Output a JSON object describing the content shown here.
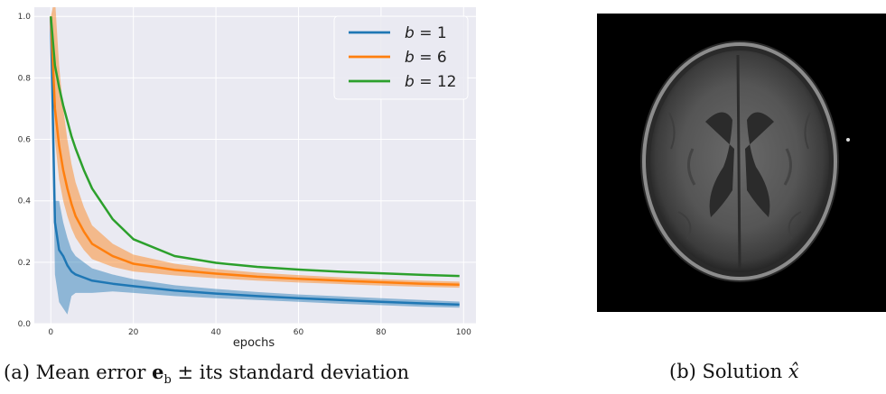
{
  "chart_data": {
    "type": "line",
    "xlabel": "epochs",
    "xlim": [
      -4,
      103
    ],
    "ylim": [
      0,
      1.03
    ],
    "xticks": [
      0,
      20,
      40,
      60,
      80,
      100
    ],
    "yticks": [
      0.0,
      0.2,
      0.4,
      0.6,
      0.8,
      1.0
    ],
    "x": [
      0,
      1,
      2,
      3,
      4,
      5,
      6,
      8,
      10,
      15,
      20,
      30,
      40,
      50,
      60,
      70,
      80,
      90,
      99
    ],
    "grid": true,
    "legend_position": "top-right",
    "series": [
      {
        "name": "b = 1",
        "legend_var": "b",
        "legend_val": "1",
        "color": "#1f77b4",
        "values": [
          1.0,
          0.33,
          0.24,
          0.22,
          0.19,
          0.17,
          0.16,
          0.15,
          0.14,
          0.13,
          0.122,
          0.108,
          0.098,
          0.09,
          0.083,
          0.077,
          0.071,
          0.066,
          0.062
        ],
        "lower": [
          1.0,
          0.16,
          0.07,
          0.05,
          0.03,
          0.09,
          0.1,
          0.1,
          0.1,
          0.105,
          0.1,
          0.09,
          0.083,
          0.077,
          0.071,
          0.065,
          0.06,
          0.055,
          0.052
        ],
        "upper": [
          1.0,
          0.4,
          0.4,
          0.33,
          0.28,
          0.24,
          0.22,
          0.2,
          0.18,
          0.16,
          0.145,
          0.125,
          0.113,
          0.103,
          0.095,
          0.089,
          0.083,
          0.077,
          0.072
        ]
      },
      {
        "name": "b = 6",
        "legend_var": "b",
        "legend_val": "6",
        "color": "#ff7f0e",
        "values": [
          1.0,
          0.7,
          0.58,
          0.5,
          0.44,
          0.39,
          0.35,
          0.3,
          0.26,
          0.22,
          0.195,
          0.175,
          0.163,
          0.153,
          0.146,
          0.14,
          0.135,
          0.13,
          0.127
        ],
        "lower": [
          1.0,
          0.6,
          0.47,
          0.4,
          0.35,
          0.31,
          0.28,
          0.24,
          0.21,
          0.185,
          0.17,
          0.157,
          0.148,
          0.14,
          0.134,
          0.129,
          0.124,
          0.12,
          0.117
        ],
        "upper": [
          1.0,
          1.06,
          0.84,
          0.7,
          0.6,
          0.52,
          0.46,
          0.38,
          0.32,
          0.26,
          0.225,
          0.195,
          0.178,
          0.166,
          0.158,
          0.151,
          0.145,
          0.14,
          0.137
        ]
      },
      {
        "name": "b = 12",
        "legend_var": "b",
        "legend_val": "12",
        "color": "#2ca02c",
        "values": [
          1.0,
          0.84,
          0.77,
          0.71,
          0.66,
          0.61,
          0.57,
          0.5,
          0.44,
          0.34,
          0.275,
          0.22,
          0.198,
          0.185,
          0.176,
          0.169,
          0.164,
          0.159,
          0.155
        ],
        "lower": null,
        "upper": null
      }
    ]
  },
  "captions": {
    "a_prefix": "(a) Mean error ",
    "a_bold": "e",
    "a_sub": "b",
    "a_suffix": " ± its standard deviation",
    "b_prefix": "(b) Solution ",
    "b_var": "x̂"
  },
  "image_panel": {
    "subject": "axial brain MRI slice"
  }
}
